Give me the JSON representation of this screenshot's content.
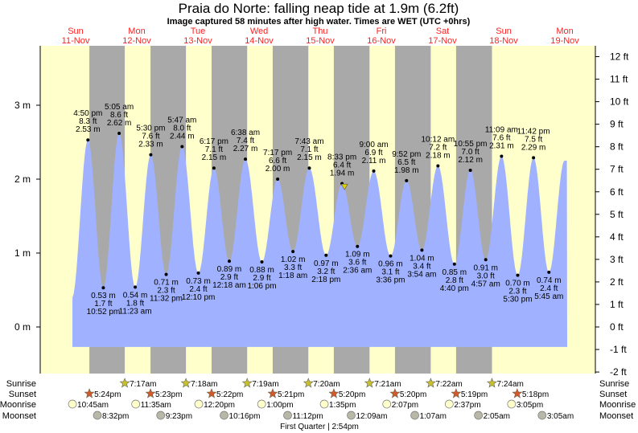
{
  "title": "Praia do Norte: falling  neap tide at 1.9m (6.2ft)",
  "subtitle": "Image captured 58 minutes after high water. Times are WET (UTC +0hrs)",
  "chart_data": {
    "type": "area",
    "title": "Praia do Norte: falling  neap tide at 1.9m (6.2ft)",
    "ylabel_left": "m",
    "ylabel_right": "ft",
    "ylim_m": [
      -0.55,
      3.8
    ],
    "left_ticks": [
      "0 m",
      "1 m",
      "2 m",
      "3 m"
    ],
    "right_ticks": [
      "-2 ft",
      "-1 ft",
      "0 ft",
      "1 ft",
      "2 ft",
      "3 ft",
      "4 ft",
      "5 ft",
      "6 ft",
      "7 ft",
      "8 ft",
      "9 ft",
      "10 ft",
      "11 ft",
      "12 ft"
    ],
    "days": [
      {
        "dow": "Sun",
        "date": "11-Nov"
      },
      {
        "dow": "Mon",
        "date": "12-Nov"
      },
      {
        "dow": "Tue",
        "date": "13-Nov"
      },
      {
        "dow": "Wed",
        "date": "14-Nov"
      },
      {
        "dow": "Thu",
        "date": "15-Nov"
      },
      {
        "dow": "Fri",
        "date": "16-Nov"
      },
      {
        "dow": "Sat",
        "date": "17-Nov"
      },
      {
        "dow": "Sun",
        "date": "18-Nov"
      },
      {
        "dow": "Mon",
        "date": "19-Nov"
      }
    ],
    "extremes": [
      {
        "type": "H",
        "day": 0,
        "time": "4:50 pm",
        "ft": "8.3 ft",
        "m": 2.53
      },
      {
        "type": "L",
        "day": 0,
        "time": "10:52 pm",
        "ft": "1.7 ft",
        "m": 0.53
      },
      {
        "type": "H",
        "day": 1,
        "time": "5:05 am",
        "ft": "8.6 ft",
        "m": 2.62
      },
      {
        "type": "L",
        "day": 1,
        "time": "11:23 am",
        "ft": "1.8 ft",
        "m": 0.54
      },
      {
        "type": "H",
        "day": 1,
        "time": "5:30 pm",
        "ft": "7.6 ft",
        "m": 2.33
      },
      {
        "type": "L",
        "day": 1,
        "time": "11:32 pm",
        "ft": "2.3 ft",
        "m": 0.71
      },
      {
        "type": "H",
        "day": 2,
        "time": "5:47 am",
        "ft": "8.0 ft",
        "m": 2.44
      },
      {
        "type": "L",
        "day": 2,
        "time": "12:10 pm",
        "ft": "2.4 ft",
        "m": 0.73
      },
      {
        "type": "H",
        "day": 2,
        "time": "6:17 pm",
        "ft": "7.1 ft",
        "m": 2.15
      },
      {
        "type": "L",
        "day": 3,
        "time": "12:18 am",
        "ft": "2.9 ft",
        "m": 0.89
      },
      {
        "type": "H",
        "day": 3,
        "time": "6:38 am",
        "ft": "7.4 ft",
        "m": 2.27
      },
      {
        "type": "L",
        "day": 3,
        "time": "1:06 pm",
        "ft": "2.9 ft",
        "m": 0.88
      },
      {
        "type": "H",
        "day": 3,
        "time": "7:17 pm",
        "ft": "6.6 ft",
        "m": 2.0
      },
      {
        "type": "L",
        "day": 4,
        "time": "1:18 am",
        "ft": "3.3 ft",
        "m": 1.02
      },
      {
        "type": "H",
        "day": 4,
        "time": "7:43 am",
        "ft": "7.1 ft",
        "m": 2.15
      },
      {
        "type": "L",
        "day": 4,
        "time": "2:18 pm",
        "ft": "3.2 ft",
        "m": 0.97
      },
      {
        "type": "H",
        "day": 4,
        "time": "8:33 pm",
        "ft": "6.4 ft",
        "m": 1.94
      },
      {
        "type": "L",
        "day": 5,
        "time": "2:36 am",
        "ft": "3.6 ft",
        "m": 1.09
      },
      {
        "type": "H",
        "day": 5,
        "time": "9:00 am",
        "ft": "6.9 ft",
        "m": 2.11
      },
      {
        "type": "L",
        "day": 5,
        "time": "3:36 pm",
        "ft": "3.1 ft",
        "m": 0.96
      },
      {
        "type": "H",
        "day": 5,
        "time": "9:52 pm",
        "ft": "6.5 ft",
        "m": 1.98
      },
      {
        "type": "L",
        "day": 6,
        "time": "3:54 am",
        "ft": "3.4 ft",
        "m": 1.04
      },
      {
        "type": "H",
        "day": 6,
        "time": "10:12 am",
        "ft": "7.2 ft",
        "m": 2.18
      },
      {
        "type": "L",
        "day": 6,
        "time": "4:40 pm",
        "ft": "2.8 ft",
        "m": 0.85
      },
      {
        "type": "H",
        "day": 6,
        "time": "10:55 pm",
        "ft": "7.0 ft",
        "m": 2.12
      },
      {
        "type": "L",
        "day": 7,
        "time": "4:57 am",
        "ft": "3.0 ft",
        "m": 0.91
      },
      {
        "type": "H",
        "day": 7,
        "time": "11:09 am",
        "ft": "7.6 ft",
        "m": 2.31
      },
      {
        "type": "L",
        "day": 7,
        "time": "5:30 pm",
        "ft": "2.3 ft",
        "m": 0.7
      },
      {
        "type": "H",
        "day": 7,
        "time": "11:42 pm",
        "ft": "7.5 ft",
        "m": 2.29
      },
      {
        "type": "L",
        "day": 8,
        "time": "5:45 am",
        "ft": "2.4 ft",
        "m": 0.74
      }
    ],
    "current": {
      "day": 4,
      "time": "9:31 pm",
      "m": 1.9
    }
  },
  "almanac": {
    "labels": {
      "sunrise": "Sunrise",
      "sunset": "Sunset",
      "moonrise": "Moonrise",
      "moonset": "Moonset"
    },
    "sunrise": [
      {
        "day": 1,
        "t": "7:17am"
      },
      {
        "day": 2,
        "t": "7:18am"
      },
      {
        "day": 3,
        "t": "7:19am"
      },
      {
        "day": 4,
        "t": "7:20am"
      },
      {
        "day": 5,
        "t": "7:21am"
      },
      {
        "day": 6,
        "t": "7:22am"
      },
      {
        "day": 7,
        "t": "7:24am"
      }
    ],
    "sunset": [
      {
        "day": 0,
        "t": "5:24pm"
      },
      {
        "day": 1,
        "t": "5:23pm"
      },
      {
        "day": 2,
        "t": "5:22pm"
      },
      {
        "day": 3,
        "t": "5:21pm"
      },
      {
        "day": 4,
        "t": "5:20pm"
      },
      {
        "day": 5,
        "t": "5:20pm"
      },
      {
        "day": 6,
        "t": "5:19pm"
      },
      {
        "day": 7,
        "t": "5:18pm"
      }
    ],
    "moonrise": [
      {
        "day": 0,
        "t": "10:45am"
      },
      {
        "day": 1,
        "t": "11:35am"
      },
      {
        "day": 2,
        "t": "12:20pm"
      },
      {
        "day": 3,
        "t": "1:00pm"
      },
      {
        "day": 4,
        "t": "1:35pm"
      },
      {
        "day": 5,
        "t": "2:07pm"
      },
      {
        "day": 6,
        "t": "2:37pm"
      },
      {
        "day": 7,
        "t": "3:05pm"
      }
    ],
    "moonset": [
      {
        "day": 0,
        "t": "8:32pm"
      },
      {
        "day": 1,
        "t": "9:23pm"
      },
      {
        "day": 2,
        "t": "10:16pm"
      },
      {
        "day": 3,
        "t": "11:12pm"
      },
      {
        "day": 5,
        "t": "12:09am"
      },
      {
        "day": 6,
        "t": "1:07am"
      },
      {
        "day": 7,
        "t": "2:05am"
      },
      {
        "day": 8,
        "t": "3:05am"
      }
    ],
    "phase": "First Quarter | 2:54pm"
  },
  "colors": {
    "day": "#ffffcc",
    "night": "#a9a9a9",
    "water": "#a0b2ff",
    "daylabel": "#ff2020",
    "sunrise": "#c8c030",
    "sunset": "#d25a2a",
    "moonrise": "#ffffcc",
    "moonset": "#b8b8a8"
  }
}
